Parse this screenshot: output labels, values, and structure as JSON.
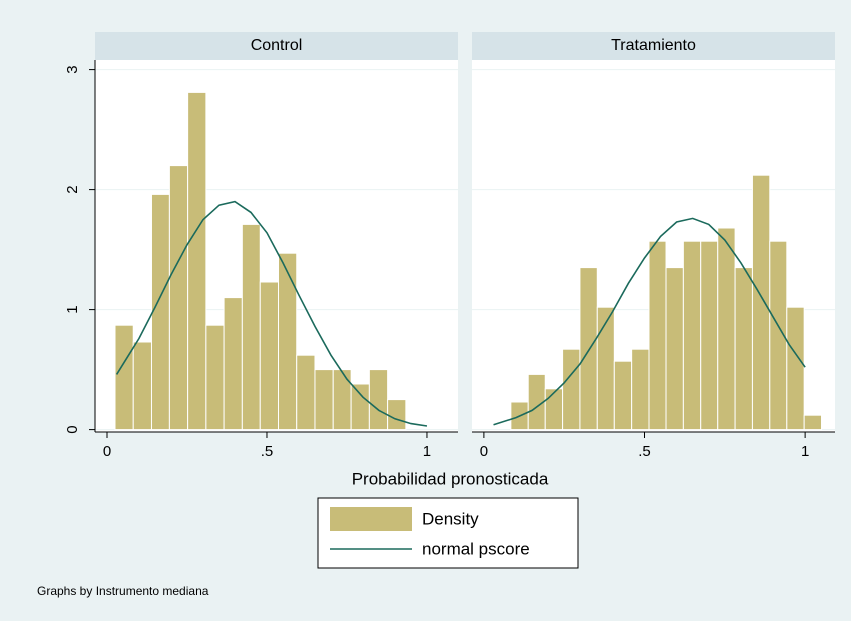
{
  "chart_data": [
    {
      "type": "histogram",
      "title": "Control",
      "bins": [
        0.025,
        0.082,
        0.139,
        0.195,
        0.252,
        0.309,
        0.366,
        0.423,
        0.479,
        0.536,
        0.593,
        0.65,
        0.707,
        0.763,
        0.82,
        0.877,
        0.934
      ],
      "values": [
        0.87,
        0.73,
        1.96,
        2.2,
        2.81,
        0.87,
        1.1,
        1.71,
        1.23,
        1.47,
        0.62,
        0.5,
        0.5,
        0.38,
        0.5,
        0.25
      ],
      "curve": {
        "x": [
          0.03,
          0.1,
          0.15,
          0.2,
          0.25,
          0.3,
          0.35,
          0.4,
          0.45,
          0.5,
          0.55,
          0.6,
          0.65,
          0.7,
          0.75,
          0.8,
          0.85,
          0.9,
          0.95,
          1.0
        ],
        "values": [
          0.46,
          0.76,
          1.02,
          1.29,
          1.54,
          1.75,
          1.87,
          1.9,
          1.81,
          1.64,
          1.39,
          1.12,
          0.86,
          0.62,
          0.42,
          0.27,
          0.16,
          0.09,
          0.05,
          0.03
        ]
      },
      "xlim": [
        -0.0375,
        1.097
      ],
      "xticks": [
        0,
        {
          "value": 0.5,
          "label": ".5"
        },
        1
      ],
      "ylim": [
        -0.02,
        3.08
      ],
      "yticks": [
        0,
        1,
        2,
        3
      ],
      "grid": true
    },
    {
      "type": "histogram",
      "title": "Tratamiento",
      "bins": [
        0.084,
        0.138,
        0.191,
        0.245,
        0.299,
        0.353,
        0.406,
        0.46,
        0.514,
        0.567,
        0.621,
        0.675,
        0.728,
        0.782,
        0.836,
        0.89,
        0.943,
        0.997,
        1.051
      ],
      "values": [
        0.23,
        0.46,
        0.34,
        0.67,
        1.35,
        1.02,
        0.57,
        0.67,
        1.57,
        1.35,
        1.57,
        1.57,
        1.68,
        1.35,
        2.12,
        1.57,
        1.02,
        0.12
      ],
      "curve": {
        "x": [
          0.03,
          0.1,
          0.15,
          0.2,
          0.25,
          0.3,
          0.35,
          0.4,
          0.45,
          0.5,
          0.55,
          0.6,
          0.65,
          0.7,
          0.75,
          0.8,
          0.85,
          0.9,
          0.95,
          1.0
        ],
        "values": [
          0.04,
          0.1,
          0.16,
          0.26,
          0.39,
          0.55,
          0.76,
          0.98,
          1.22,
          1.43,
          1.61,
          1.73,
          1.76,
          1.71,
          1.58,
          1.39,
          1.17,
          0.94,
          0.71,
          0.52
        ]
      },
      "xlim": [
        -0.037,
        1.093
      ],
      "xticks": [
        0,
        {
          "value": 0.5,
          "label": ".5"
        },
        1
      ],
      "ylim": [
        -0.02,
        3.08
      ],
      "yticks": [
        0,
        1,
        2,
        3
      ],
      "grid": true
    }
  ],
  "xlabel": "Probabilidad pronosticada",
  "legend": [
    {
      "name": "Density",
      "color": "#c8bc78"
    },
    {
      "name": "normal pscore",
      "color": "#1b6a5c"
    }
  ],
  "note": "Graphs by Instrumento mediana"
}
